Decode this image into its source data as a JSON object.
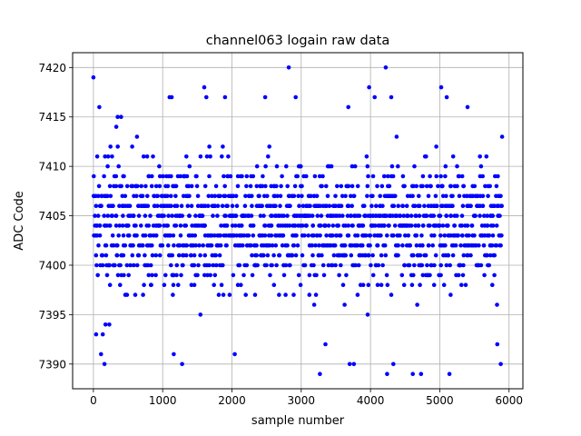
{
  "chart_data": {
    "type": "scatter",
    "title": "channel063 logain raw data",
    "xlabel": "sample number",
    "ylabel": "ADC Code",
    "xlim": [
      -300,
      6200
    ],
    "ylim": [
      7387.5,
      7421.5
    ],
    "x_ticks": [
      0,
      1000,
      2000,
      3000,
      4000,
      5000,
      6000
    ],
    "y_ticks": [
      7390,
      7395,
      7400,
      7405,
      7410,
      7415,
      7420
    ],
    "grid": true,
    "series": [
      {
        "color": "#0000ff",
        "marker": "circle",
        "n_samples": 5900,
        "x_range": [
          0,
          5900
        ],
        "y_min": 7389,
        "y_max": 7420,
        "y_median": 7404,
        "values": [
          [
            0,
            7419
          ],
          [
            40,
            7393
          ],
          [
            55,
            7411
          ],
          [
            85,
            7416
          ],
          [
            110,
            7391
          ],
          [
            160,
            7390
          ],
          [
            175,
            7394
          ],
          [
            230,
            7394
          ],
          [
            330,
            7414
          ],
          [
            350,
            7415
          ],
          [
            400,
            7415
          ],
          [
            1100,
            7417
          ],
          [
            1130,
            7417
          ],
          [
            1160,
            7391
          ],
          [
            1280,
            7390
          ],
          [
            1600,
            7418
          ],
          [
            1630,
            7417
          ],
          [
            1900,
            7417
          ],
          [
            2040,
            7391
          ],
          [
            2480,
            7417
          ],
          [
            2820,
            7420
          ],
          [
            2920,
            7417
          ],
          [
            3270,
            7389
          ],
          [
            3350,
            7392
          ],
          [
            3680,
            7416
          ],
          [
            3700,
            7390
          ],
          [
            3760,
            7390
          ],
          [
            3980,
            7418
          ],
          [
            4060,
            7417
          ],
          [
            4220,
            7420
          ],
          [
            4240,
            7389
          ],
          [
            4300,
            7417
          ],
          [
            4330,
            7390
          ],
          [
            4610,
            7389
          ],
          [
            4730,
            7389
          ],
          [
            5020,
            7418
          ],
          [
            5100,
            7417
          ],
          [
            5140,
            7389
          ],
          [
            5400,
            7416
          ],
          [
            5830,
            7392
          ],
          [
            5880,
            7390
          ],
          [
            5900,
            7413
          ]
        ]
      }
    ]
  }
}
